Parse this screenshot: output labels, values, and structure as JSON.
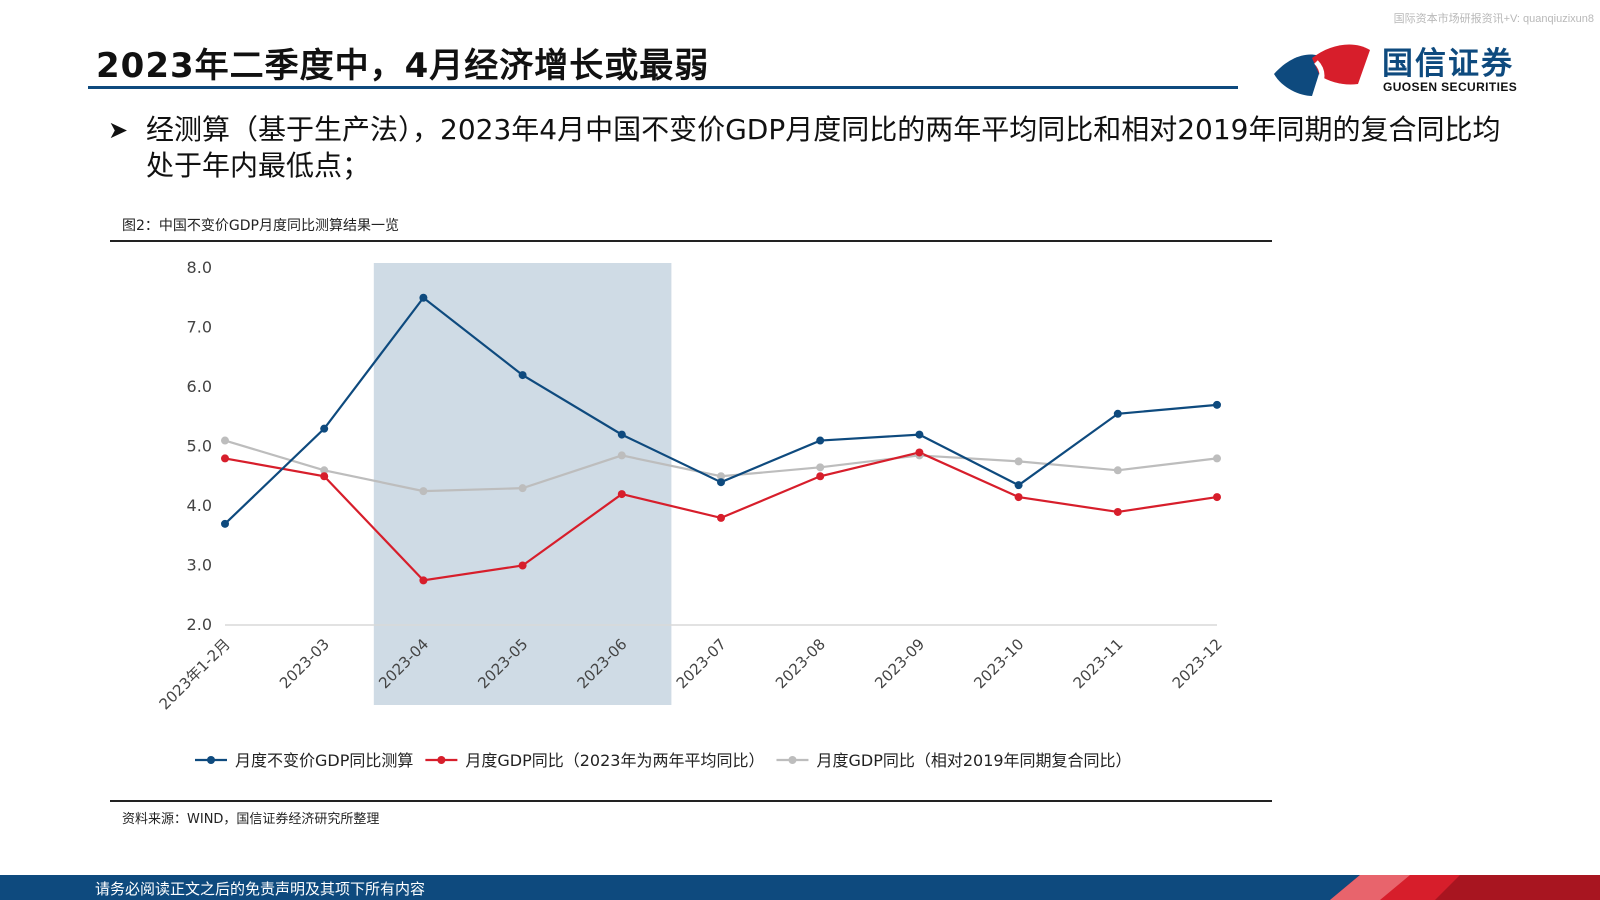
{
  "watermark": "国际资本市场研报资讯+V: quanqiuzixun8",
  "title": "2023年二季度中，4月经济增长或最弱",
  "logo": {
    "cn": "国信证券",
    "en": "GUOSEN SECURITIES",
    "colors": {
      "blue": "#0e4a7e",
      "red": "#d71e2b"
    }
  },
  "bullet": {
    "icon": "arrow-bullet-icon",
    "text": "经测算（基于生产法），2023年4月中国不变价GDP月度同比的两年平均同比和相对2019年同期的复合同比均处于年内最低点；"
  },
  "figure": {
    "caption": "图2：中国不变价GDP月度同比测算结果一览",
    "source": "资料来源：WIND，国信证券经济研究所整理"
  },
  "chart_data": {
    "type": "line",
    "categories": [
      "2023年1-2月",
      "2023-03",
      "2023-04",
      "2023-05",
      "2023-06",
      "2023-07",
      "2023-08",
      "2023-09",
      "2023-10",
      "2023-11",
      "2023-12"
    ],
    "ylim": [
      2.0,
      8.0
    ],
    "yticks": [
      "8.0",
      "7.0",
      "6.0",
      "5.0",
      "4.0",
      "3.0",
      "2.0"
    ],
    "ytick_values": [
      8,
      7,
      6,
      5,
      4,
      3,
      2
    ],
    "highlight_range": [
      "2023-04",
      "2023-06"
    ],
    "highlight_color": "#cfdbe5",
    "grid": false,
    "legend_position": "bottom",
    "series": [
      {
        "name": "月度不变价GDP同比测算",
        "color": "#0e4a7e",
        "values": [
          3.7,
          5.3,
          7.5,
          6.2,
          5.2,
          4.4,
          5.1,
          5.2,
          4.35,
          5.55,
          5.7
        ]
      },
      {
        "name": "月度GDP同比（2023年为两年平均同比）",
        "color": "#d71e2b",
        "values": [
          4.8,
          4.5,
          2.75,
          3.0,
          4.2,
          3.8,
          4.5,
          4.9,
          4.15,
          3.9,
          4.15
        ]
      },
      {
        "name": "月度GDP同比（相对2019年同期复合同比）",
        "color": "#bdbdbd",
        "values": [
          5.1,
          4.6,
          4.25,
          4.3,
          4.85,
          4.5,
          4.65,
          4.85,
          4.75,
          4.6,
          4.8
        ]
      }
    ]
  },
  "footer": {
    "text": "请务必阅读正文之后的免责声明及其项下所有内容"
  }
}
